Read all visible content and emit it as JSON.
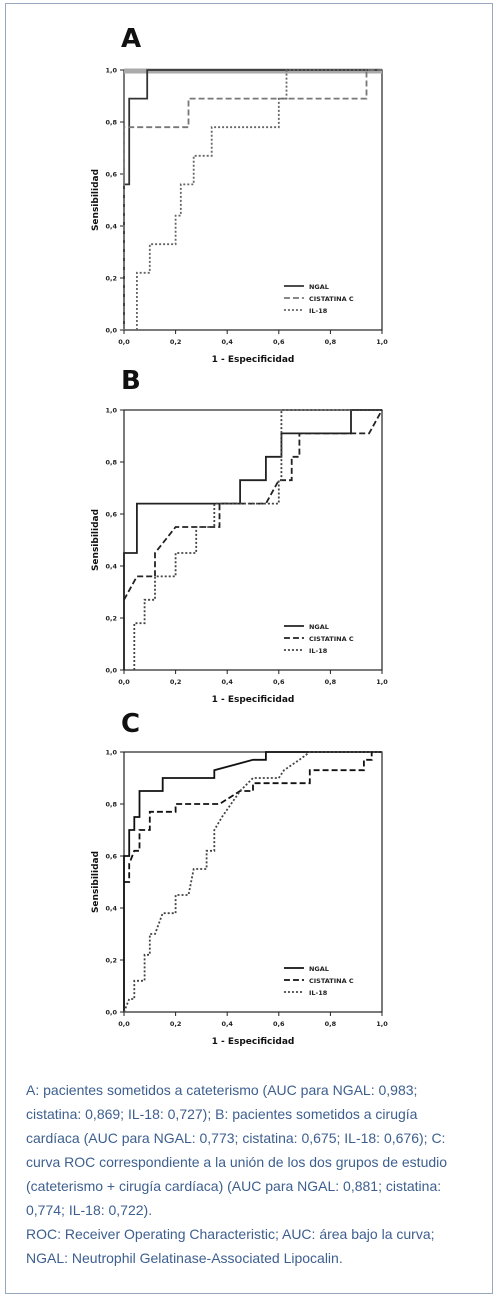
{
  "panels": [
    {
      "letter": "A"
    },
    {
      "letter": "B"
    },
    {
      "letter": "C"
    }
  ],
  "chart_data": [
    {
      "type": "line",
      "title": "A",
      "xlabel": "1 - Especificidad",
      "ylabel": "Sensibilidad",
      "xlim": [
        0,
        1
      ],
      "ylim": [
        0,
        1
      ],
      "xticks": [
        "0,0",
        "0,2",
        "0,4",
        "0,6",
        "0,8",
        "1,0"
      ],
      "yticks": [
        "0,0",
        "0,2",
        "0,4",
        "0,6",
        "0,8",
        "1,0"
      ],
      "legend_position": "bottom-right",
      "series": [
        {
          "name": "NGAL",
          "style": "solid",
          "color": "#333333",
          "points": [
            [
              0,
              0
            ],
            [
              0,
              0.56
            ],
            [
              0.02,
              0.56
            ],
            [
              0.02,
              0.89
            ],
            [
              0.09,
              0.89
            ],
            [
              0.09,
              1.0
            ],
            [
              1.0,
              1.0
            ]
          ]
        },
        {
          "name": "CISTATINA C",
          "style": "dashed",
          "color": "#777777",
          "points": [
            [
              0,
              0
            ],
            [
              0,
              0.78
            ],
            [
              0.25,
              0.78
            ],
            [
              0.25,
              0.89
            ],
            [
              0.94,
              0.89
            ],
            [
              0.94,
              1.0
            ],
            [
              1.0,
              1.0
            ]
          ]
        },
        {
          "name": "IL-18",
          "style": "dotted",
          "color": "#666666",
          "points": [
            [
              0.05,
              0
            ],
            [
              0.05,
              0.22
            ],
            [
              0.1,
              0.22
            ],
            [
              0.1,
              0.33
            ],
            [
              0.2,
              0.33
            ],
            [
              0.2,
              0.44
            ],
            [
              0.22,
              0.44
            ],
            [
              0.22,
              0.56
            ],
            [
              0.27,
              0.56
            ],
            [
              0.27,
              0.67
            ],
            [
              0.34,
              0.67
            ],
            [
              0.34,
              0.78
            ],
            [
              0.6,
              0.78
            ],
            [
              0.6,
              0.89
            ],
            [
              0.63,
              0.89
            ],
            [
              0.63,
              1.0
            ],
            [
              1.0,
              1.0
            ]
          ]
        }
      ],
      "reference_line": {
        "color": "#aaaaaa"
      }
    },
    {
      "type": "line",
      "title": "B",
      "xlabel": "1 - Especificidad",
      "ylabel": "Sensibilidad",
      "xlim": [
        0,
        1
      ],
      "ylim": [
        0,
        1
      ],
      "xticks": [
        "0,0",
        "0,2",
        "0,4",
        "0,6",
        "0,8",
        "1,0"
      ],
      "yticks": [
        "0,0",
        "0,2",
        "0,4",
        "0,6",
        "0,8",
        "1,0"
      ],
      "legend_position": "bottom-right",
      "series": [
        {
          "name": "NGAL",
          "style": "solid",
          "color": "#222222",
          "points": [
            [
              0,
              0
            ],
            [
              0,
              0.45
            ],
            [
              0.05,
              0.45
            ],
            [
              0.05,
              0.64
            ],
            [
              0.45,
              0.64
            ],
            [
              0.45,
              0.73
            ],
            [
              0.55,
              0.73
            ],
            [
              0.55,
              0.82
            ],
            [
              0.61,
              0.82
            ],
            [
              0.61,
              0.91
            ],
            [
              0.88,
              0.91
            ],
            [
              0.88,
              1.0
            ],
            [
              1.0,
              1.0
            ]
          ]
        },
        {
          "name": "CISTATINA C",
          "style": "dashed",
          "color": "#222222",
          "points": [
            [
              0,
              0.27
            ],
            [
              0.05,
              0.36
            ],
            [
              0.12,
              0.36
            ],
            [
              0.12,
              0.45
            ],
            [
              0.2,
              0.55
            ],
            [
              0.37,
              0.55
            ],
            [
              0.37,
              0.64
            ],
            [
              0.55,
              0.64
            ],
            [
              0.6,
              0.73
            ],
            [
              0.65,
              0.73
            ],
            [
              0.65,
              0.82
            ],
            [
              0.68,
              0.82
            ],
            [
              0.68,
              0.91
            ],
            [
              0.8,
              0.91
            ],
            [
              0.95,
              0.91
            ],
            [
              1.0,
              1.0
            ]
          ]
        },
        {
          "name": "IL-18",
          "style": "dotted",
          "color": "#444444",
          "points": [
            [
              0.04,
              0
            ],
            [
              0.04,
              0.18
            ],
            [
              0.08,
              0.18
            ],
            [
              0.08,
              0.27
            ],
            [
              0.12,
              0.27
            ],
            [
              0.12,
              0.36
            ],
            [
              0.2,
              0.36
            ],
            [
              0.2,
              0.45
            ],
            [
              0.28,
              0.45
            ],
            [
              0.28,
              0.55
            ],
            [
              0.35,
              0.55
            ],
            [
              0.35,
              0.64
            ],
            [
              0.6,
              0.64
            ],
            [
              0.6,
              0.73
            ],
            [
              0.61,
              0.73
            ],
            [
              0.61,
              1.0
            ],
            [
              1.0,
              1.0
            ]
          ]
        }
      ]
    },
    {
      "type": "line",
      "title": "C",
      "xlabel": "1 - Especificidad",
      "ylabel": "Sensibilidad",
      "xlim": [
        0,
        1
      ],
      "ylim": [
        0,
        1
      ],
      "xticks": [
        "0,0",
        "0,2",
        "0,4",
        "0,6",
        "0,8",
        "1,0"
      ],
      "yticks": [
        "0,0",
        "0,2",
        "0,4",
        "0,6",
        "0,8",
        "1,0"
      ],
      "legend_position": "bottom-right",
      "series": [
        {
          "name": "NGAL",
          "style": "solid",
          "color": "#111111",
          "points": [
            [
              0,
              0
            ],
            [
              0,
              0.6
            ],
            [
              0.02,
              0.6
            ],
            [
              0.02,
              0.7
            ],
            [
              0.04,
              0.7
            ],
            [
              0.04,
              0.75
            ],
            [
              0.06,
              0.75
            ],
            [
              0.06,
              0.85
            ],
            [
              0.1,
              0.85
            ],
            [
              0.15,
              0.85
            ],
            [
              0.15,
              0.9
            ],
            [
              0.35,
              0.9
            ],
            [
              0.35,
              0.93
            ],
            [
              0.5,
              0.97
            ],
            [
              0.55,
              0.97
            ],
            [
              0.55,
              1.0
            ],
            [
              1.0,
              1.0
            ]
          ]
        },
        {
          "name": "CISTATINA C",
          "style": "dashed",
          "color": "#111111",
          "points": [
            [
              0,
              0.5
            ],
            [
              0.02,
              0.5
            ],
            [
              0.02,
              0.57
            ],
            [
              0.04,
              0.62
            ],
            [
              0.06,
              0.62
            ],
            [
              0.06,
              0.7
            ],
            [
              0.1,
              0.7
            ],
            [
              0.1,
              0.77
            ],
            [
              0.2,
              0.77
            ],
            [
              0.2,
              0.8
            ],
            [
              0.37,
              0.8
            ],
            [
              0.45,
              0.85
            ],
            [
              0.5,
              0.85
            ],
            [
              0.5,
              0.88
            ],
            [
              0.72,
              0.88
            ],
            [
              0.72,
              0.93
            ],
            [
              0.93,
              0.93
            ],
            [
              0.93,
              0.97
            ],
            [
              0.96,
              0.97
            ],
            [
              0.96,
              1.0
            ]
          ]
        },
        {
          "name": "IL-18",
          "style": "dotted",
          "color": "#444444",
          "points": [
            [
              0,
              0
            ],
            [
              0.02,
              0.05
            ],
            [
              0.04,
              0.05
            ],
            [
              0.04,
              0.12
            ],
            [
              0.08,
              0.12
            ],
            [
              0.08,
              0.22
            ],
            [
              0.1,
              0.22
            ],
            [
              0.1,
              0.3
            ],
            [
              0.12,
              0.3
            ],
            [
              0.15,
              0.38
            ],
            [
              0.2,
              0.38
            ],
            [
              0.2,
              0.45
            ],
            [
              0.25,
              0.45
            ],
            [
              0.27,
              0.55
            ],
            [
              0.32,
              0.55
            ],
            [
              0.32,
              0.62
            ],
            [
              0.35,
              0.62
            ],
            [
              0.35,
              0.7
            ],
            [
              0.38,
              0.75
            ],
            [
              0.45,
              0.85
            ],
            [
              0.5,
              0.9
            ],
            [
              0.6,
              0.9
            ],
            [
              0.62,
              0.93
            ],
            [
              0.68,
              0.97
            ],
            [
              0.72,
              1.0
            ],
            [
              1.0,
              1.0
            ]
          ]
        }
      ]
    }
  ],
  "caption": {
    "line1": "A: pacientes sometidos a cateterismo (AUC para NGAL: 0,983; cistatina: 0,869; IL-18: 0,727); B: pacientes sometidos a cirugía cardíaca (AUC para NGAL: 0,773; cistatina: 0,675; IL-18: 0,676); C: curva ROC correspondiente a la unión de los dos grupos de estudio (cateterismo + cirugía cardíaca) (AUC para NGAL: 0,881; cistatina: 0,774; IL-18: 0,722).",
    "line2": "ROC: Receiver Operating Characteristic; AUC: área bajo la curva; NGAL: Neutrophil Gelatinase-Associated Lipocalin."
  }
}
